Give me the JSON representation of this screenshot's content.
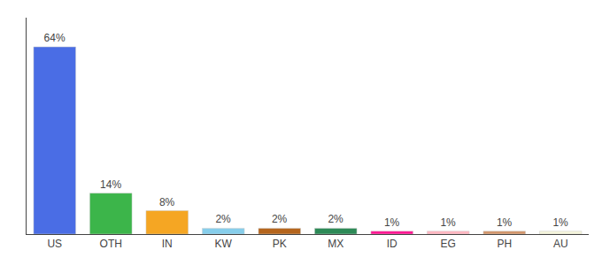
{
  "chart_data": {
    "type": "bar",
    "categories": [
      "US",
      "OTH",
      "IN",
      "KW",
      "PK",
      "MX",
      "ID",
      "EG",
      "PH",
      "AU"
    ],
    "values": [
      64,
      14,
      8,
      2,
      2,
      2,
      1,
      1,
      1,
      1
    ],
    "value_labels": [
      "64%",
      "14%",
      "8%",
      "2%",
      "2%",
      "2%",
      "1%",
      "1%",
      "1%",
      "1%"
    ],
    "colors": [
      "#4a6de5",
      "#3cb54a",
      "#f5a623",
      "#87ceeb",
      "#b5651d",
      "#2d8a57",
      "#ff1493",
      "#ffb6c1",
      "#d2956a",
      "#f5f5dc"
    ],
    "ylim": [
      0,
      74
    ],
    "data_labels": true,
    "tick_labels": "x",
    "grid": false
  }
}
